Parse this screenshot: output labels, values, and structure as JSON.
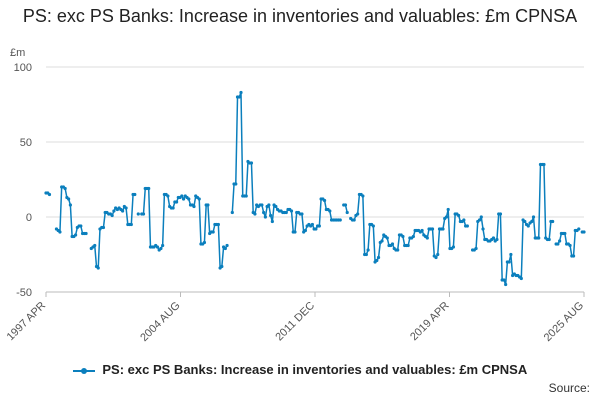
{
  "chart_data": {
    "type": "line",
    "title": "PS: exc PS Banks: Increase in inventories and valuables: £m CPNSA",
    "unit_label": "£m",
    "xlabel": "",
    "ylabel": "",
    "ylim": [
      -50,
      100
    ],
    "y_ticks": [
      -50,
      0,
      50,
      100
    ],
    "x_tick_labels": [
      "1997 APR",
      "2004 AUG",
      "2011 DEC",
      "2019 APR",
      "2025 AUG"
    ],
    "grid": true,
    "legend_position": "bottom",
    "series": [
      {
        "name": "PS: exc PS Banks: Increase in inventories and valuables: £m CPNSA",
        "color": "#0b7fbd",
        "values": [
          16,
          16,
          15,
          null,
          null,
          null,
          -8,
          -9,
          -10,
          20,
          20,
          19,
          13,
          12,
          8,
          -13,
          -13,
          -12,
          -7,
          -6,
          -6,
          -11,
          -11,
          -11,
          null,
          null,
          -21,
          -20,
          -19,
          -33,
          -34,
          -8,
          -7,
          -7,
          3,
          3,
          2,
          2,
          1,
          4,
          6,
          5,
          6,
          5,
          4,
          7,
          6,
          -5,
          -5,
          -5,
          15,
          15,
          null,
          2,
          null,
          2,
          2,
          19,
          19,
          19,
          -20,
          -20,
          -20,
          -19,
          -20,
          -22,
          -21,
          -19,
          15,
          15,
          14,
          7,
          6,
          6,
          10,
          10,
          13,
          13,
          14,
          12,
          14,
          13,
          12,
          8,
          8,
          7,
          14,
          13,
          12,
          -18,
          -18,
          -17,
          8,
          8,
          -11,
          -10,
          -10,
          -5,
          -5,
          -5,
          -34,
          -33,
          -20,
          -21,
          -19,
          null,
          null,
          3,
          22,
          22,
          80,
          80,
          83,
          14,
          14,
          14,
          37,
          36,
          36,
          3,
          2,
          8,
          7,
          8,
          8,
          3,
          0,
          7,
          8,
          1,
          -3,
          8,
          7,
          5,
          4,
          4,
          3,
          3,
          3,
          5,
          5,
          4,
          -10,
          -10,
          3,
          3,
          2,
          2,
          -10,
          -9,
          -6,
          -5,
          -6,
          -5,
          -8,
          -8,
          -6,
          -6,
          12,
          12,
          11,
          5,
          5,
          4,
          -2,
          -2,
          -2,
          -2,
          -2,
          -2,
          null,
          8,
          8,
          3,
          null,
          -1,
          -2,
          -2,
          1,
          2,
          15,
          15,
          14,
          -25,
          -25,
          -22,
          -5,
          -5,
          -6,
          -30,
          -29,
          -27,
          -17,
          -16,
          -12,
          -13,
          -14,
          -19,
          -19,
          -18,
          -21,
          -22,
          -22,
          -12,
          -12,
          -13,
          -19,
          -19,
          -19,
          -14,
          -14,
          -13,
          -9,
          -9,
          -9,
          -10,
          -9,
          -12,
          -13,
          -14,
          -8,
          -8,
          -8,
          -26,
          -27,
          -25,
          -8,
          -8,
          -8,
          -1,
          0,
          5,
          -21,
          -21,
          -20,
          2,
          2,
          1,
          -3,
          -3,
          -2,
          -6,
          -6,
          null,
          null,
          -22,
          -22,
          -21,
          -3,
          -2,
          0,
          -8,
          -15,
          -15,
          -16,
          -16,
          -15,
          -14,
          -16,
          -15,
          2,
          2,
          -42,
          -42,
          -45,
          -30,
          -30,
          -25,
          -39,
          -38,
          -39,
          -39,
          -40,
          -41,
          -2,
          -3,
          -5,
          -6,
          -4,
          -3,
          0,
          -14,
          -14,
          -14,
          35,
          35,
          35,
          -14,
          -15,
          -15,
          -3,
          -3,
          null,
          -18,
          -18,
          -16,
          -11,
          -11,
          -11,
          -18,
          -18,
          -19,
          -26,
          -26,
          -9,
          -9,
          -8,
          null,
          -10,
          -10
        ]
      }
    ]
  },
  "source_label": "Source:"
}
